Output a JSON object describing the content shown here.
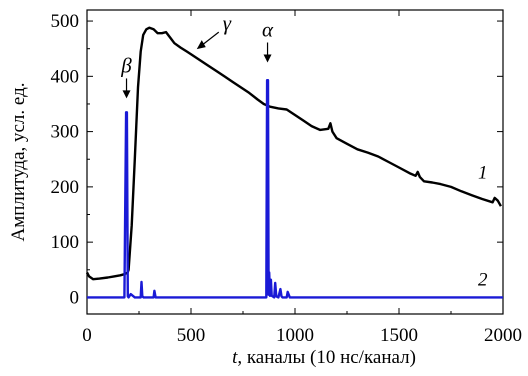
{
  "chart_data": {
    "type": "line",
    "xlabel_var": "t",
    "xlabel_rest": ", каналы (10 нс/канал)",
    "ylabel": "Амплитуда, усл. ед.",
    "xlim": [
      0,
      2000
    ],
    "ylim": [
      -30,
      520
    ],
    "xticks": [
      0,
      500,
      1000,
      1500,
      2000
    ],
    "yticks": [
      0,
      100,
      200,
      300,
      400,
      500
    ],
    "grid": false,
    "series": [
      {
        "name": "1",
        "color": "#000000",
        "x": [
          0,
          10,
          30,
          60,
          100,
          130,
          160,
          180,
          195,
          200,
          215,
          230,
          245,
          258,
          270,
          285,
          300,
          320,
          340,
          360,
          380,
          400,
          420,
          450,
          480,
          500,
          540,
          580,
          620,
          660,
          700,
          740,
          780,
          820,
          850,
          880,
          920,
          960,
          1000,
          1040,
          1080,
          1120,
          1160,
          1170,
          1180,
          1200,
          1250,
          1300,
          1350,
          1400,
          1450,
          1500,
          1550,
          1580,
          1590,
          1600,
          1620,
          1660,
          1700,
          1750,
          1800,
          1850,
          1900,
          1950,
          1960,
          1975,
          1990
        ],
        "y": [
          45,
          38,
          33,
          34,
          36,
          38,
          40,
          42,
          45,
          50,
          130,
          250,
          380,
          445,
          475,
          485,
          488,
          485,
          478,
          478,
          480,
          470,
          460,
          452,
          445,
          440,
          430,
          420,
          410,
          400,
          390,
          380,
          370,
          358,
          350,
          345,
          342,
          340,
          330,
          320,
          310,
          303,
          305,
          315,
          300,
          288,
          278,
          268,
          262,
          255,
          245,
          235,
          225,
          220,
          227,
          218,
          210,
          208,
          205,
          200,
          192,
          185,
          178,
          172,
          180,
          175,
          165
        ]
      },
      {
        "name": "2",
        "color": "#1a1ad6",
        "x": [
          0,
          100,
          180,
          188,
          192,
          196,
          200,
          210,
          230,
          258,
          262,
          266,
          272,
          290,
          320,
          324,
          330,
          400,
          500,
          600,
          700,
          800,
          850,
          862,
          866,
          870,
          873,
          876,
          880,
          884,
          888,
          900,
          905,
          910,
          920,
          930,
          935,
          940,
          950,
          960,
          965,
          975,
          990,
          1100,
          1200,
          1300,
          1400,
          1500,
          1600,
          1700,
          1800,
          1900,
          2000
        ],
        "y": [
          0,
          0,
          0,
          335,
          335,
          2,
          0,
          6,
          0,
          0,
          28,
          2,
          0,
          0,
          0,
          12,
          0,
          0,
          0,
          0,
          0,
          0,
          0,
          0,
          393,
          393,
          5,
          45,
          3,
          32,
          3,
          0,
          26,
          2,
          0,
          15,
          2,
          0,
          0,
          0,
          10,
          0,
          0,
          0,
          0,
          0,
          0,
          0,
          0,
          0,
          0,
          0,
          0
        ]
      }
    ],
    "annotations": [
      {
        "symbol": "β",
        "x": 190,
        "y": 360
      },
      {
        "symbol": "α",
        "x": 868,
        "y": 425
      },
      {
        "symbol": "γ",
        "x": 595,
        "y": 480
      }
    ],
    "curve_labels": [
      {
        "text": "1",
        "x": 1880,
        "y": 215
      },
      {
        "text": "2",
        "x": 1880,
        "y": 22
      }
    ]
  }
}
